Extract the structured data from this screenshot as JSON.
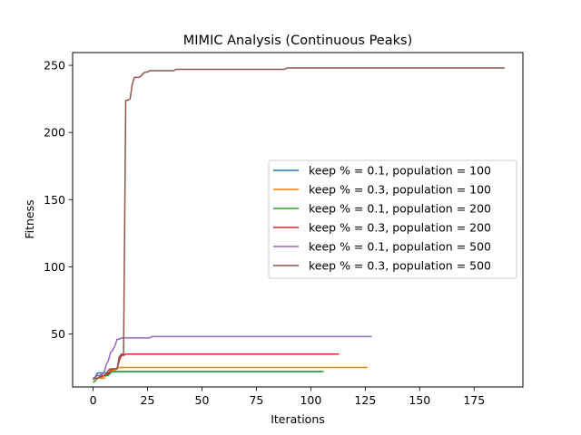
{
  "chart_data": {
    "type": "line",
    "title": "MIMIC Analysis (Continuous Peaks)",
    "xlabel": "Iterations",
    "ylabel": "Fitness",
    "xlim": [
      -9.4,
      197.4
    ],
    "ylim": [
      10.5,
      259.5
    ],
    "xticks": [
      0,
      25,
      50,
      75,
      100,
      125,
      150,
      175
    ],
    "yticks": [
      50,
      100,
      150,
      200,
      250
    ],
    "grid": false,
    "legend_position": "center-right",
    "series": [
      {
        "name": "keep % = 0.1, population = 100",
        "color": "#1f77b4",
        "points": [
          [
            0,
            16
          ],
          [
            1,
            18
          ],
          [
            2,
            21
          ],
          [
            3,
            21
          ],
          [
            4,
            21
          ],
          [
            5,
            21
          ],
          [
            6,
            21
          ],
          [
            7,
            21
          ],
          [
            8,
            22
          ],
          [
            9,
            22
          ],
          [
            10,
            22
          ],
          [
            105,
            22
          ]
        ]
      },
      {
        "name": "keep % = 0.3, population = 100",
        "color": "#ff7f0e",
        "points": [
          [
            0,
            16
          ],
          [
            1,
            17
          ],
          [
            2,
            17
          ],
          [
            3,
            17
          ],
          [
            4,
            17
          ],
          [
            5,
            17
          ],
          [
            6,
            19
          ],
          [
            7,
            20
          ],
          [
            8,
            22
          ],
          [
            9,
            23
          ],
          [
            10,
            23
          ],
          [
            11,
            24
          ],
          [
            12,
            25
          ],
          [
            13,
            25
          ],
          [
            14,
            25
          ],
          [
            15,
            25
          ],
          [
            16,
            25
          ],
          [
            126,
            25
          ]
        ]
      },
      {
        "name": "keep % = 0.1, population = 200",
        "color": "#2ca02c",
        "points": [
          [
            0,
            14
          ],
          [
            1,
            15
          ],
          [
            2,
            17
          ],
          [
            3,
            18
          ],
          [
            4,
            18
          ],
          [
            5,
            19
          ],
          [
            6,
            19
          ],
          [
            7,
            19
          ],
          [
            8,
            21
          ],
          [
            9,
            22
          ],
          [
            10,
            22
          ],
          [
            106,
            22
          ]
        ]
      },
      {
        "name": "keep % = 0.3, population = 200",
        "color": "#d62728",
        "points": [
          [
            0,
            17
          ],
          [
            1,
            18
          ],
          [
            2,
            19
          ],
          [
            3,
            19
          ],
          [
            4,
            19
          ],
          [
            5,
            19
          ],
          [
            6,
            20
          ],
          [
            7,
            20
          ],
          [
            8,
            23
          ],
          [
            9,
            24
          ],
          [
            10,
            24
          ],
          [
            11,
            24
          ],
          [
            12,
            30
          ],
          [
            13,
            34
          ],
          [
            14,
            34
          ],
          [
            15,
            35
          ],
          [
            16,
            35
          ],
          [
            113,
            35
          ]
        ]
      },
      {
        "name": "keep % = 0.1, population = 500",
        "color": "#9467bd",
        "points": [
          [
            0,
            17
          ],
          [
            1,
            18
          ],
          [
            2,
            19
          ],
          [
            3,
            19
          ],
          [
            4,
            20
          ],
          [
            5,
            21
          ],
          [
            6,
            27
          ],
          [
            7,
            30
          ],
          [
            8,
            36
          ],
          [
            9,
            38
          ],
          [
            10,
            41
          ],
          [
            11,
            46
          ],
          [
            12,
            46
          ],
          [
            13,
            47
          ],
          [
            14,
            47
          ],
          [
            15,
            47
          ],
          [
            26,
            47
          ],
          [
            27,
            48
          ],
          [
            128,
            48
          ]
        ]
      },
      {
        "name": "keep % = 0.3, population = 500",
        "color": "#8c564b",
        "points": [
          [
            0,
            16
          ],
          [
            1,
            17
          ],
          [
            2,
            17
          ],
          [
            3,
            18
          ],
          [
            4,
            18
          ],
          [
            5,
            19
          ],
          [
            6,
            20
          ],
          [
            7,
            23
          ],
          [
            8,
            24
          ],
          [
            9,
            24
          ],
          [
            10,
            24
          ],
          [
            11,
            24
          ],
          [
            12,
            33
          ],
          [
            13,
            35
          ],
          [
            14,
            35
          ],
          [
            15,
            224
          ],
          [
            16,
            224
          ],
          [
            17,
            225
          ],
          [
            18,
            236
          ],
          [
            19,
            241
          ],
          [
            20,
            241
          ],
          [
            21,
            241
          ],
          [
            22,
            242
          ],
          [
            23,
            244
          ],
          [
            24,
            245
          ],
          [
            25,
            245
          ],
          [
            26,
            246
          ],
          [
            37,
            246
          ],
          [
            38,
            247
          ],
          [
            88,
            247
          ],
          [
            89,
            248
          ],
          [
            189,
            248
          ]
        ]
      }
    ]
  }
}
